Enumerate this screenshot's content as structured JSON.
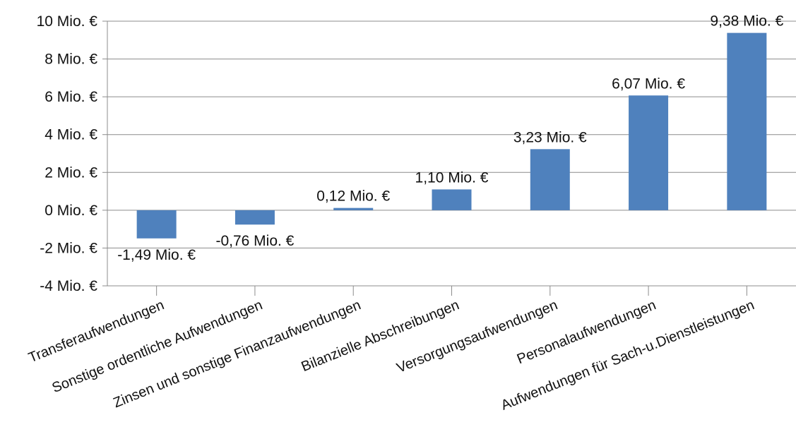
{
  "chart_data": {
    "type": "bar",
    "categories": [
      "Transferaufwendungen",
      "Sonstige ordentliche Aufwendungen",
      "Zinsen und sonstige Finanzaufwendungen",
      "Bilanzielle Abschreibungen",
      "Versorgungsaufwendungen",
      "Personalaufwendungen",
      "Aufwendungen für Sach-u.Dienstleistungen"
    ],
    "values": [
      -1.49,
      -0.76,
      0.12,
      1.1,
      3.23,
      6.07,
      9.38
    ],
    "data_labels": [
      "-1,49 Mio. €",
      "-0,76 Mio. €",
      "0,12 Mio. €",
      "1,10 Mio. €",
      "3,23 Mio. €",
      "6,07 Mio. €",
      "9,38 Mio. €"
    ],
    "ylim": [
      -4,
      10
    ],
    "yticks": [
      10,
      8,
      6,
      4,
      2,
      0,
      -2,
      -4
    ],
    "ytick_labels": [
      "10 Mio. €",
      "8 Mio. €",
      "6 Mio. €",
      "4 Mio. €",
      "2 Mio. €",
      "0 Mio. €",
      "-2 Mio. €",
      "-4 Mio. €"
    ],
    "title": "",
    "xlabel": "",
    "ylabel": "",
    "grid": true,
    "legend": "none",
    "bar_color": "#4f81bd"
  }
}
